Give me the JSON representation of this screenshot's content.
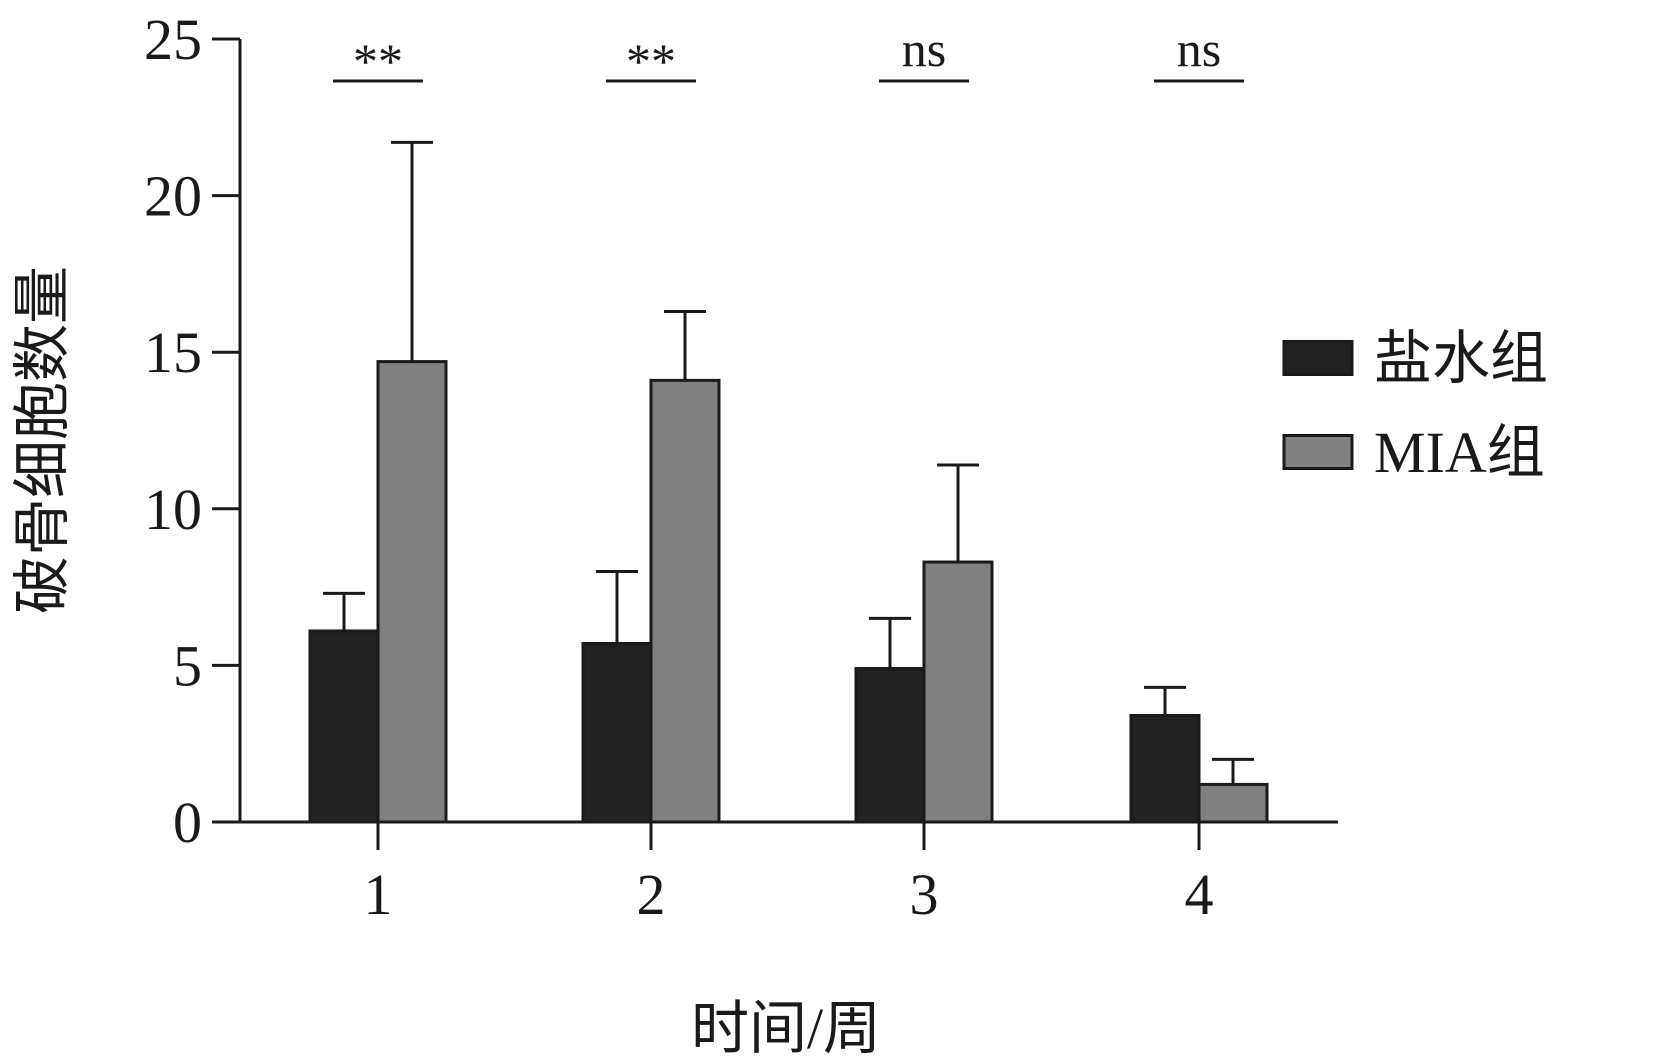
{
  "chart_data": {
    "type": "bar",
    "ylabel": "破骨细胞数量",
    "xlabel": "时间/周",
    "categories": [
      "1",
      "2",
      "3",
      "4"
    ],
    "ylim": [
      0,
      25
    ],
    "yticks": [
      "0",
      "5",
      "10",
      "15",
      "20",
      "25"
    ],
    "series": [
      {
        "name": "盐水组",
        "color": "#222222",
        "values": [
          6.1,
          5.7,
          4.9,
          3.4
        ],
        "error": [
          1.2,
          2.3,
          1.6,
          0.9
        ]
      },
      {
        "name": "MIA组",
        "color": "#808080",
        "values": [
          14.7,
          14.1,
          8.3,
          1.2
        ],
        "error": [
          7.0,
          2.2,
          3.1,
          0.8
        ]
      }
    ],
    "significance": [
      "**",
      "**",
      "ns",
      "ns"
    ],
    "legend_position": "right",
    "grid": false
  }
}
